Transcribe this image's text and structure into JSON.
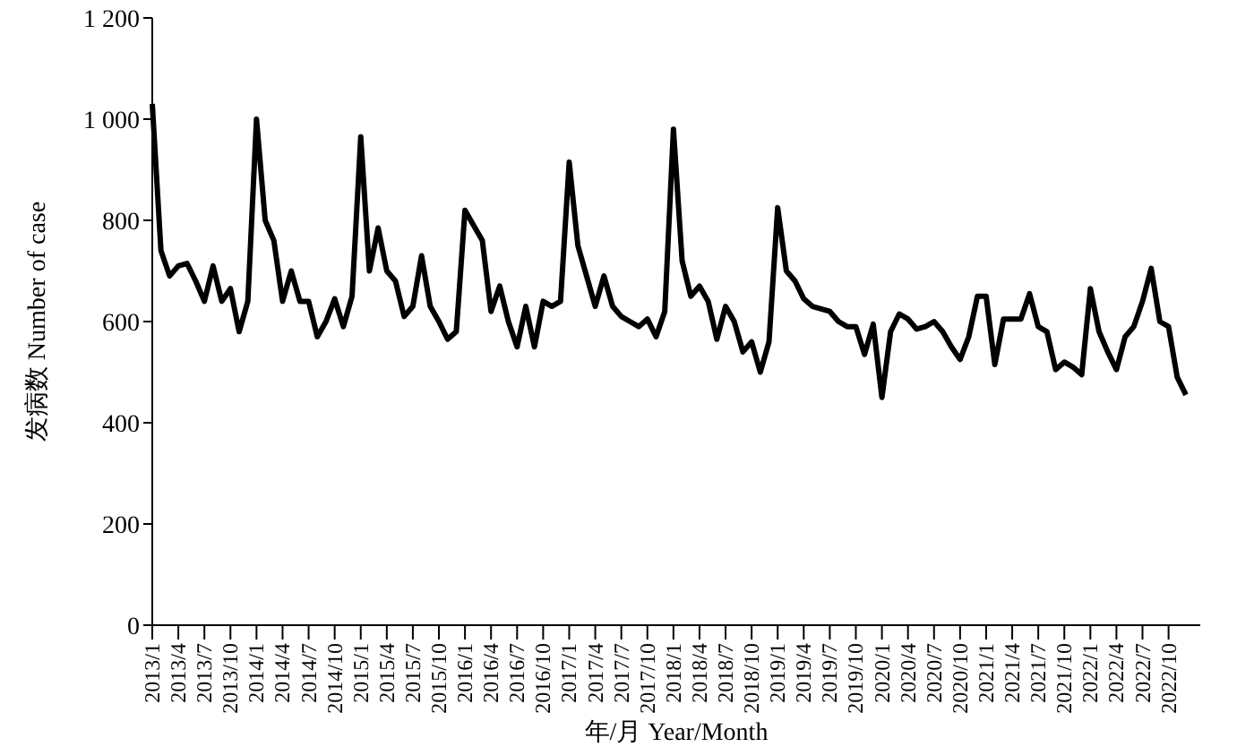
{
  "chart_data": {
    "type": "line",
    "xlabel": "年/月 Year/Month",
    "ylabel": "发病数  Number of case",
    "categories": [
      "2013/1",
      null,
      null,
      "2013/4",
      null,
      null,
      "2013/7",
      null,
      null,
      "2013/10",
      null,
      null,
      "2014/1",
      null,
      null,
      "2014/4",
      null,
      null,
      "2014/7",
      null,
      null,
      "2014/10",
      null,
      null,
      "2015/1",
      null,
      null,
      "2015/4",
      null,
      null,
      "2015/7",
      null,
      null,
      "2015/10",
      null,
      null,
      "2016/1",
      null,
      null,
      "2016/4",
      null,
      null,
      "2016/7",
      null,
      null,
      "2016/10",
      null,
      null,
      "2017/1",
      null,
      null,
      "2017/4",
      null,
      null,
      "2017/7",
      null,
      null,
      "2017/10",
      null,
      null,
      "2018/1",
      null,
      null,
      "2018/4",
      null,
      null,
      "2018/7",
      null,
      null,
      "2018/10",
      null,
      null,
      "2019/1",
      null,
      null,
      "2019/4",
      null,
      null,
      "2019/7",
      null,
      null,
      "2019/10",
      null,
      null,
      "2020/1",
      null,
      null,
      "2020/4",
      null,
      null,
      "2020/7",
      null,
      null,
      "2020/10",
      null,
      null,
      "2021/1",
      null,
      null,
      "2021/4",
      null,
      null,
      "2021/7",
      null,
      null,
      "2021/10",
      null,
      null,
      "2022/1",
      null,
      null,
      "2022/4",
      null,
      null,
      "2022/7",
      null,
      null,
      "2022/10",
      null,
      null
    ],
    "series": [
      {
        "color": "#000000",
        "values": [
          1030,
          740,
          690,
          710,
          715,
          680,
          640,
          710,
          640,
          665,
          580,
          640,
          1000,
          800,
          760,
          640,
          700,
          640,
          640,
          570,
          600,
          645,
          590,
          650,
          965,
          700,
          785,
          700,
          680,
          610,
          630,
          730,
          630,
          600,
          565,
          580,
          820,
          790,
          760,
          620,
          670,
          600,
          550,
          630,
          550,
          640,
          630,
          640,
          915,
          750,
          690,
          630,
          690,
          630,
          610,
          600,
          590,
          605,
          570,
          620,
          980,
          720,
          650,
          670,
          640,
          565,
          630,
          600,
          540,
          560,
          500,
          560,
          825,
          700,
          680,
          645,
          630,
          625,
          620,
          600,
          590,
          590,
          535,
          595,
          450,
          580,
          615,
          605,
          585,
          590,
          600,
          580,
          550,
          525,
          570,
          650,
          650,
          515,
          605,
          605,
          605,
          655,
          590,
          580,
          505,
          520,
          510,
          495,
          665,
          580,
          540,
          505,
          570,
          590,
          640,
          705,
          600,
          590,
          490,
          455
        ]
      }
    ],
    "ylim": [
      0,
      1200
    ],
    "yticks": [
      0,
      200,
      400,
      600,
      800,
      {
        "value": 1000,
        "label": "1 000"
      },
      {
        "value": 1200,
        "label": "1 200"
      }
    ],
    "grid": false,
    "legend": false,
    "marker": "none",
    "line_style": "solid"
  }
}
